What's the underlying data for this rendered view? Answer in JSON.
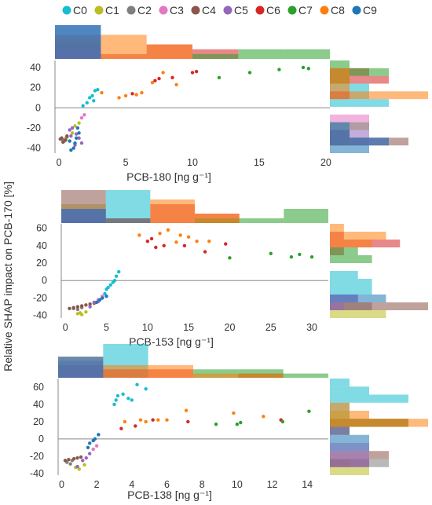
{
  "legend": [
    {
      "name": "C0",
      "color": "#17becf"
    },
    {
      "name": "C1",
      "color": "#bcbd22"
    },
    {
      "name": "C2",
      "color": "#7f7f7f"
    },
    {
      "name": "C3",
      "color": "#e377c2"
    },
    {
      "name": "C4",
      "color": "#8c564b"
    },
    {
      "name": "C5",
      "color": "#9467bd"
    },
    {
      "name": "C6",
      "color": "#d62728"
    },
    {
      "name": "C7",
      "color": "#2ca02c"
    },
    {
      "name": "C8",
      "color": "#ff7f0e"
    },
    {
      "name": "C9",
      "color": "#1f77b4"
    }
  ],
  "ylabel": "Relative SHAP impact on PCB-170 [%]",
  "chart_data": [
    {
      "type": "scatter",
      "xlabel": "PCB-180 [ng g⁻¹]",
      "xlim": [
        -0.3,
        20.3
      ],
      "ylim": [
        -45,
        47
      ],
      "xticks": [
        0,
        5,
        10,
        15,
        20
      ],
      "yticks": [
        -40,
        -20,
        0,
        20,
        40
      ],
      "series": [
        {
          "name": "C0",
          "points": [
            [
              2.7,
              17
            ],
            [
              2.9,
              18
            ],
            [
              2.5,
              12
            ],
            [
              2.3,
              10
            ],
            [
              2.6,
              7
            ],
            [
              2.1,
              5
            ],
            [
              1.8,
              2
            ]
          ]
        },
        {
          "name": "C1",
          "points": [
            [
              1.2,
              -18
            ],
            [
              1.5,
              -15
            ],
            [
              1.0,
              -25
            ],
            [
              0.5,
              -30
            ]
          ]
        },
        {
          "name": "C2",
          "points": [
            [
              0.3,
              -32
            ],
            [
              0.6,
              -29
            ],
            [
              0.4,
              -33
            ]
          ]
        },
        {
          "name": "C3",
          "points": [
            [
              1.7,
              -10
            ],
            [
              1.9,
              -7
            ]
          ]
        },
        {
          "name": "C4",
          "points": [
            [
              0.2,
              -30
            ],
            [
              0.3,
              -34
            ],
            [
              0.5,
              -32
            ],
            [
              0.1,
              -31
            ],
            [
              0.6,
              -28
            ]
          ]
        },
        {
          "name": "C5",
          "points": [
            [
              0.8,
              -22
            ],
            [
              1.0,
              -20
            ],
            [
              1.3,
              -26
            ],
            [
              1.5,
              -30
            ],
            [
              1.7,
              -35
            ],
            [
              1.2,
              -37
            ],
            [
              0.9,
              -28
            ]
          ]
        },
        {
          "name": "C6",
          "points": [
            [
              5.5,
              14
            ],
            [
              7.2,
              27
            ],
            [
              7.5,
              29
            ],
            [
              8.5,
              30
            ],
            [
              10.0,
              35
            ],
            [
              10.3,
              36
            ]
          ]
        },
        {
          "name": "C7",
          "points": [
            [
              12.0,
              30
            ],
            [
              14.3,
              35
            ],
            [
              16.5,
              38
            ],
            [
              18.3,
              40
            ],
            [
              18.7,
              39
            ]
          ]
        },
        {
          "name": "C8",
          "points": [
            [
              4.5,
              10
            ],
            [
              5.0,
              12
            ],
            [
              6.2,
              15
            ],
            [
              7.0,
              25
            ],
            [
              7.8,
              35
            ],
            [
              8.8,
              23
            ],
            [
              3.2,
              15
            ],
            [
              5.8,
              13
            ]
          ]
        },
        {
          "name": "C9",
          "points": [
            [
              1.2,
              -35
            ],
            [
              0.8,
              -33
            ],
            [
              1.5,
              -25
            ],
            [
              1.4,
              -20
            ],
            [
              1.1,
              -40
            ],
            [
              0.9,
              -42
            ],
            [
              1.3,
              -30
            ]
          ]
        }
      ]
    },
    {
      "type": "scatter",
      "xlabel": "PCB-153 [ng g⁻¹]",
      "xlim": [
        -0.5,
        32
      ],
      "ylim": [
        -43,
        65
      ],
      "xticks": [
        0,
        5,
        10,
        15,
        20,
        25,
        30
      ],
      "yticks": [
        -40,
        -20,
        0,
        20,
        40,
        60
      ],
      "series": [
        {
          "name": "C0",
          "points": [
            [
              5.0,
              -10
            ],
            [
              5.5,
              -5
            ],
            [
              6.0,
              0
            ],
            [
              6.2,
              5
            ],
            [
              5.8,
              -2
            ],
            [
              6.5,
              10
            ],
            [
              4.8,
              -15
            ],
            [
              5.2,
              -8
            ]
          ]
        },
        {
          "name": "C1",
          "points": [
            [
              1.5,
              -38
            ],
            [
              2.0,
              -39
            ],
            [
              2.5,
              -36
            ],
            [
              1.8,
              -37
            ]
          ]
        },
        {
          "name": "C2",
          "points": [
            [
              1.0,
              -32
            ],
            [
              1.5,
              -33
            ],
            [
              2.0,
              -31
            ]
          ]
        },
        {
          "name": "C3",
          "points": [
            [
              4.0,
              -22
            ],
            [
              4.5,
              -18
            ]
          ]
        },
        {
          "name": "C4",
          "points": [
            [
              0.5,
              -32
            ],
            [
              1.0,
              -31
            ],
            [
              1.5,
              -30
            ],
            [
              2.0,
              -29
            ],
            [
              2.5,
              -28
            ],
            [
              3.0,
              -27
            ],
            [
              3.5,
              -26
            ]
          ]
        },
        {
          "name": "C5",
          "points": [
            [
              3.5,
              -25
            ],
            [
              4.0,
              -24
            ],
            [
              3.0,
              -30
            ]
          ]
        },
        {
          "name": "C6",
          "points": [
            [
              10.0,
              45
            ],
            [
              10.5,
              48
            ],
            [
              12.0,
              40
            ],
            [
              14.5,
              40
            ],
            [
              17.0,
              33
            ],
            [
              19.5,
              42
            ],
            [
              11.0,
              38
            ]
          ]
        },
        {
          "name": "C7",
          "points": [
            [
              20.0,
              26
            ],
            [
              25.0,
              31
            ],
            [
              27.5,
              27
            ],
            [
              28.5,
              30
            ],
            [
              30.0,
              27
            ]
          ]
        },
        {
          "name": "C8",
          "points": [
            [
              9.0,
              52
            ],
            [
              11.5,
              54
            ],
            [
              12.5,
              58
            ],
            [
              14.0,
              52
            ],
            [
              15.0,
              50
            ],
            [
              16.0,
              45
            ],
            [
              17.5,
              45
            ],
            [
              13.5,
              44
            ]
          ]
        },
        {
          "name": "C9",
          "points": [
            [
              4.5,
              -20
            ],
            [
              5.0,
              -18
            ],
            [
              3.8,
              -25
            ],
            [
              4.2,
              -22
            ]
          ]
        }
      ]
    },
    {
      "type": "scatter",
      "xlabel": "PCB-138 [ng g⁻¹]",
      "xlim": [
        -0.2,
        15.2
      ],
      "ylim": [
        -42,
        70
      ],
      "xticks": [
        0,
        2,
        4,
        6,
        8,
        10,
        12,
        14
      ],
      "yticks": [
        -40,
        -20,
        0,
        20,
        40,
        60
      ],
      "series": [
        {
          "name": "C0",
          "points": [
            [
              3.0,
              40
            ],
            [
              3.2,
              50
            ],
            [
              3.5,
              52
            ],
            [
              4.0,
              45
            ],
            [
              4.3,
              63
            ],
            [
              3.8,
              47
            ],
            [
              4.8,
              58
            ],
            [
              3.1,
              45
            ]
          ]
        },
        {
          "name": "C1",
          "points": [
            [
              0.8,
              -33
            ],
            [
              1.0,
              -35
            ],
            [
              1.3,
              -30
            ]
          ]
        },
        {
          "name": "C2",
          "points": [
            [
              0.3,
              -27
            ],
            [
              0.6,
              -25
            ],
            [
              0.5,
              -29
            ]
          ]
        },
        {
          "name": "C3",
          "points": [
            [
              1.8,
              -12
            ],
            [
              2.0,
              -8
            ]
          ]
        },
        {
          "name": "C4",
          "points": [
            [
              0.2,
              -25
            ],
            [
              0.4,
              -24
            ],
            [
              0.7,
              -23
            ],
            [
              0.9,
              -22
            ],
            [
              1.1,
              -21
            ]
          ]
        },
        {
          "name": "C5",
          "points": [
            [
              1.2,
              -25
            ],
            [
              1.4,
              -22
            ],
            [
              1.6,
              -17
            ],
            [
              0.9,
              -32
            ]
          ]
        },
        {
          "name": "C6",
          "points": [
            [
              3.4,
              12
            ],
            [
              5.2,
              22
            ],
            [
              7.2,
              20
            ],
            [
              12.5,
              22
            ],
            [
              4.2,
              15
            ]
          ]
        },
        {
          "name": "C7",
          "points": [
            [
              8.8,
              17
            ],
            [
              10.0,
              17
            ],
            [
              10.2,
              19
            ],
            [
              12.6,
              20
            ],
            [
              14.1,
              32
            ]
          ]
        },
        {
          "name": "C8",
          "points": [
            [
              3.6,
              20
            ],
            [
              4.5,
              22
            ],
            [
              5.5,
              22
            ],
            [
              6.0,
              22
            ],
            [
              7.1,
              33
            ],
            [
              9.8,
              30
            ],
            [
              11.5,
              26
            ],
            [
              4.8,
              20
            ]
          ]
        },
        {
          "name": "C9",
          "points": [
            [
              1.6,
              -5
            ],
            [
              1.9,
              0
            ],
            [
              2.1,
              5
            ],
            [
              1.5,
              -10
            ],
            [
              1.8,
              -2
            ]
          ]
        }
      ]
    }
  ]
}
